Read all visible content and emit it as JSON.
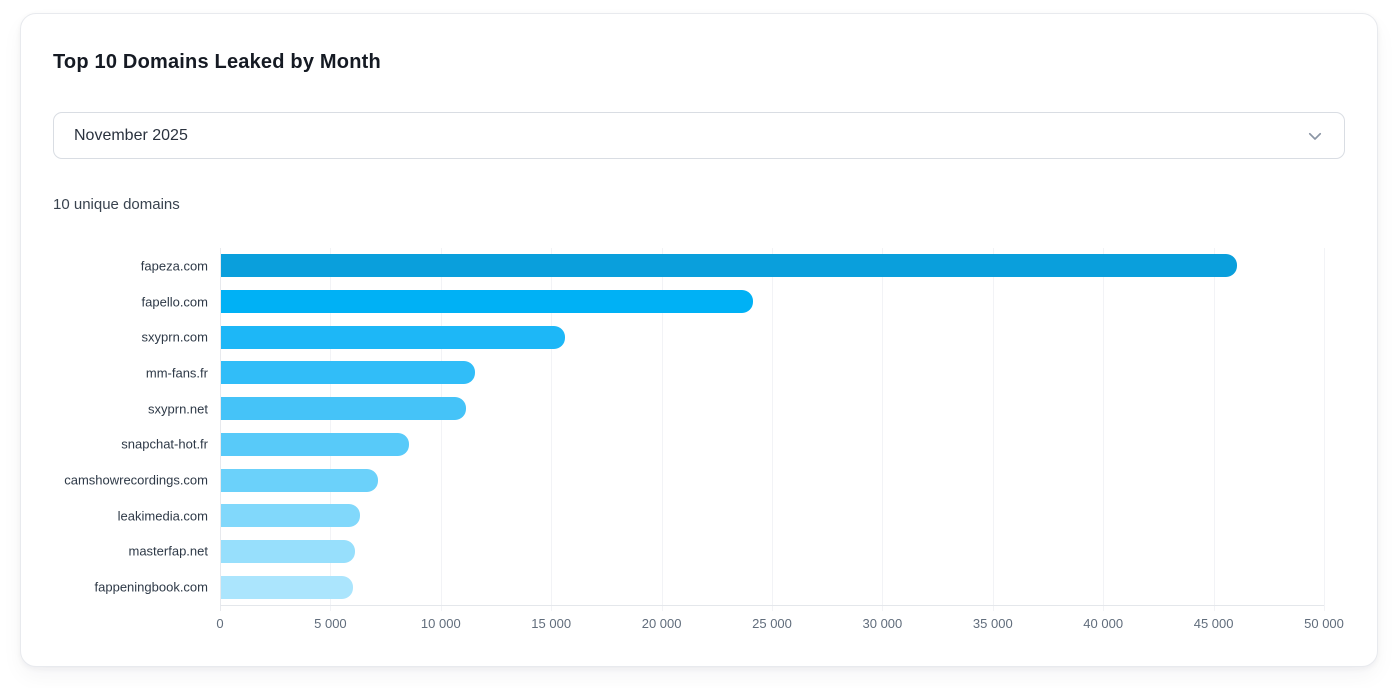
{
  "page": {
    "title": "Top 10 Domains Leaked by Month"
  },
  "month_select": {
    "value": "November 2025",
    "chevron_icon": "chevron-down"
  },
  "summary": "10 unique domains",
  "colors": {
    "bar_ramp_start": "#0A9FDC",
    "bar_ramp_end": "#ABE5FD",
    "grid": "#F2F3F6",
    "axis": "#E4E7EB",
    "tick_text": "#616D7C",
    "label_text": "#2E3947"
  },
  "chart_data": {
    "type": "bar",
    "orientation": "horizontal",
    "title": "Top 10 Domains Leaked by Month",
    "xlabel": "",
    "ylabel": "",
    "grid": true,
    "xlim": [
      0,
      50000
    ],
    "categories": [
      "fapeza.com",
      "fapello.com",
      "sxyprn.com",
      "mm-fans.fr",
      "sxyprn.net",
      "snapchat-hot.fr",
      "camshowrecordings.com",
      "leakimedia.com",
      "masterfap.net",
      "fappeningbook.com"
    ],
    "values": [
      46000,
      24100,
      15600,
      11500,
      11100,
      8500,
      7100,
      6300,
      6050,
      6000
    ],
    "bar_colors": [
      "#0A9FDC",
      "#00B1F5",
      "#1DB7F7",
      "#31BDF8",
      "#45C3F8",
      "#58CAF9",
      "#6BD1FA",
      "#81D8FB",
      "#97DFFC",
      "#ABE5FD"
    ],
    "xticks": [
      0,
      5000,
      10000,
      15000,
      20000,
      25000,
      30000,
      35000,
      40000,
      45000,
      50000
    ],
    "xtick_labels": [
      "0",
      "5 000",
      "10 000",
      "15 000",
      "20 000",
      "25 000",
      "30 000",
      "35 000",
      "40 000",
      "45 000",
      "50 000"
    ]
  }
}
